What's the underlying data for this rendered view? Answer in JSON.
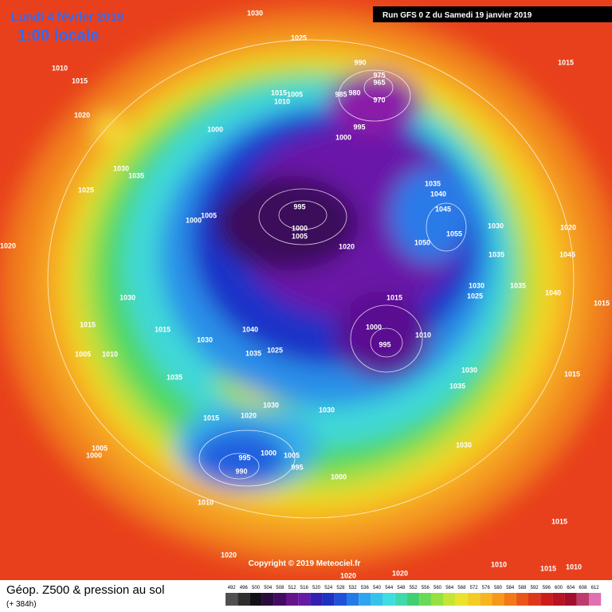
{
  "header": {
    "date": "Lundi 4 février 2019",
    "time": "1:00 locale",
    "run": "Run GFS 0 Z du Samedi 19 janvier 2019"
  },
  "footer": {
    "title": "Géop. Z500 & pression au sol",
    "lead": "(+ 384h)",
    "copyright": "Copyright © 2019 Meteociel.fr"
  },
  "colorbar": {
    "levels": [
      492,
      496,
      500,
      504,
      508,
      512,
      516,
      520,
      524,
      528,
      532,
      536,
      540,
      544,
      548,
      552,
      556,
      560,
      564,
      568,
      572,
      576,
      580,
      584,
      588,
      592,
      596,
      600,
      604,
      608,
      612
    ]
  },
  "isobar_labels": [
    1030,
    1025,
    1010,
    1015,
    1020,
    990,
    975,
    965,
    985,
    980,
    970,
    1015,
    1005,
    1010,
    1000,
    995,
    1000,
    1015,
    1030,
    1035,
    1025,
    995,
    1000,
    1005,
    1000,
    1005,
    1035,
    1040,
    1045,
    1050,
    1055,
    1030,
    1020,
    1035,
    1020,
    1045,
    1030,
    1025,
    1035,
    1040,
    1015,
    1030,
    1015,
    1015,
    1030,
    1040,
    1035,
    1025,
    1000,
    995,
    1010,
    1005,
    1010,
    1035,
    1030,
    1030,
    1030,
    1035,
    1015,
    1015,
    1020,
    1005,
    1000,
    995,
    990,
    1000,
    1005,
    995,
    1000,
    1030,
    1010,
    1015,
    1020,
    1010,
    1015,
    1010,
    1020,
    1020,
    1020,
    1015
  ]
}
